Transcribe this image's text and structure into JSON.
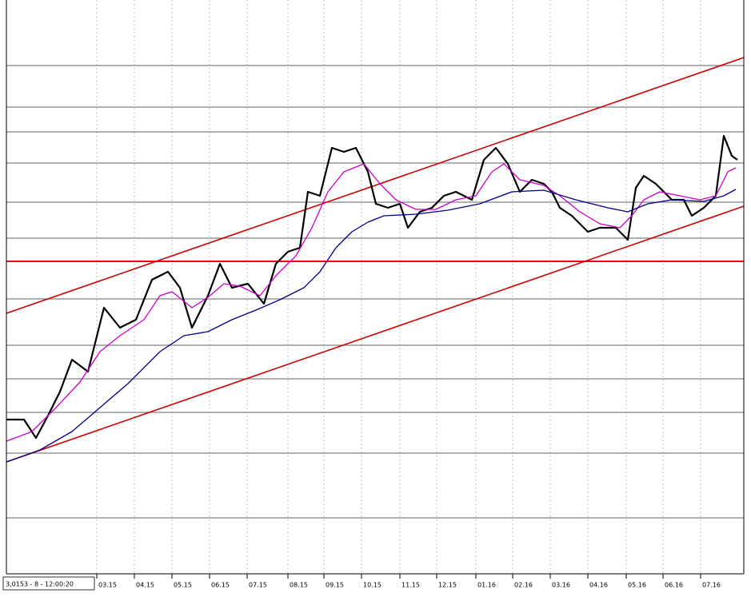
{
  "chart_data": {
    "type": "line",
    "info_label": "3,0153 - 8 - 12:00:20",
    "xlim": [
      0,
      930
    ],
    "ylim": [
      0,
      718
    ],
    "xticks": [
      {
        "value": 121,
        "label": "03.15"
      },
      {
        "value": 168,
        "label": "04.15"
      },
      {
        "value": 215,
        "label": "05.15"
      },
      {
        "value": 262,
        "label": "06.15"
      },
      {
        "value": 309,
        "label": "07.15"
      },
      {
        "value": 360,
        "label": "08.15"
      },
      {
        "value": 405,
        "label": "09.15"
      },
      {
        "value": 452,
        "label": "10.15"
      },
      {
        "value": 500,
        "label": "11.15"
      },
      {
        "value": 546,
        "label": "12.15"
      },
      {
        "value": 595,
        "label": "01.16"
      },
      {
        "value": 641,
        "label": "02.16"
      },
      {
        "value": 688,
        "label": "03.16"
      },
      {
        "value": 735,
        "label": "04.16"
      },
      {
        "value": 783,
        "label": "05.16"
      },
      {
        "value": 829,
        "label": "06.16"
      },
      {
        "value": 876,
        "label": "07.16"
      }
    ],
    "grid": true,
    "levels": {
      "color": "#808080",
      "values": [
        636,
        584,
        553,
        514,
        465,
        420,
        344,
        286,
        244,
        202,
        151,
        70
      ]
    },
    "key_level": {
      "color": "#ff0000",
      "value": 391
    },
    "trend_lines": [
      {
        "color": "#cc0000",
        "x": [
          8,
          930
        ],
        "values": [
          326,
          646
        ]
      },
      {
        "color": "#cc0000",
        "x": [
          8,
          930
        ],
        "values": [
          140,
          460
        ]
      }
    ],
    "series": [
      {
        "color": "#000000",
        "width": 2.2,
        "x": [
          8,
          30,
          45,
          60,
          75,
          90,
          110,
          130,
          150,
          170,
          190,
          210,
          225,
          240,
          260,
          275,
          290,
          310,
          330,
          345,
          360,
          375,
          385,
          400,
          415,
          430,
          445,
          460,
          470,
          485,
          500,
          510,
          525,
          540,
          555,
          570,
          590,
          605,
          620,
          635,
          650,
          665,
          680,
          690,
          700,
          715,
          735,
          750,
          770,
          785,
          795,
          805,
          820,
          840,
          855,
          865,
          880,
          895,
          905,
          915,
          922
        ],
        "values": [
          193,
          193,
          170,
          198,
          228,
          268,
          253,
          333,
          308,
          318,
          368,
          378,
          358,
          308,
          348,
          388,
          358,
          363,
          338,
          388,
          403,
          408,
          478,
          473,
          533,
          528,
          533,
          503,
          463,
          458,
          463,
          433,
          453,
          458,
          473,
          478,
          468,
          518,
          533,
          513,
          478,
          493,
          488,
          478,
          458,
          448,
          428,
          433,
          433,
          418,
          483,
          498,
          488,
          468,
          468,
          448,
          458,
          473,
          548,
          523,
          518
        ]
      },
      {
        "color": "#cc00cc",
        "width": 1.3,
        "x": [
          8,
          40,
          70,
          100,
          125,
          150,
          180,
          200,
          215,
          240,
          260,
          280,
          300,
          325,
          345,
          370,
          390,
          410,
          430,
          455,
          475,
          495,
          520,
          545,
          570,
          595,
          615,
          630,
          650,
          680,
          700,
          725,
          750,
          775,
          790,
          805,
          825,
          850,
          875,
          895,
          910,
          920
        ],
        "values": [
          166,
          178,
          208,
          240,
          278,
          298,
          318,
          348,
          353,
          333,
          346,
          363,
          360,
          348,
          373,
          398,
          433,
          478,
          503,
          513,
          488,
          468,
          456,
          456,
          468,
          473,
          503,
          513,
          493,
          486,
          473,
          453,
          438,
          433,
          448,
          468,
          478,
          473,
          468,
          473,
          503,
          508
        ]
      },
      {
        "color": "#00008b",
        "width": 1.3,
        "x": [
          8,
          50,
          90,
          125,
          160,
          200,
          230,
          260,
          290,
          320,
          350,
          380,
          400,
          420,
          440,
          460,
          480,
          520,
          560,
          600,
          640,
          680,
          720,
          760,
          785,
          810,
          840,
          880,
          905,
          920
        ],
        "values": [
          140,
          155,
          178,
          208,
          238,
          278,
          298,
          303,
          318,
          330,
          343,
          358,
          378,
          408,
          428,
          440,
          448,
          450,
          455,
          463,
          478,
          480,
          468,
          458,
          453,
          463,
          468,
          466,
          473,
          481
        ]
      }
    ]
  }
}
